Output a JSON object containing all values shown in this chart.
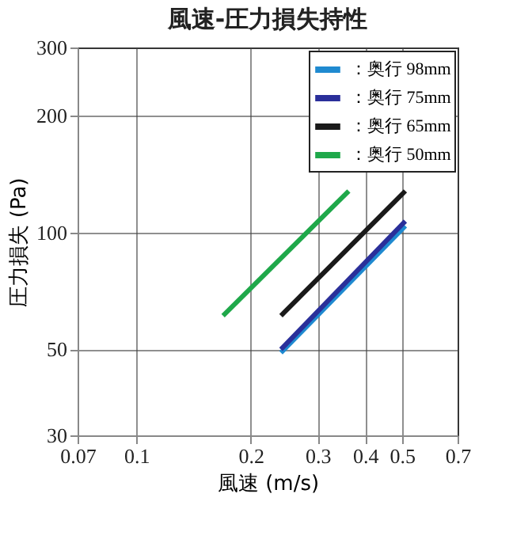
{
  "chart_data": {
    "type": "line",
    "title": "風速-圧力損失持性",
    "xlabel": "風速 (m/s)",
    "ylabel": "圧力損失 (Pa)",
    "log": "xy",
    "grid": true,
    "legend": "top right",
    "xlim": [
      0.07,
      0.7
    ],
    "ylim": [
      30,
      300
    ],
    "xticks": [
      0.07,
      0.1,
      0.2,
      0.3,
      0.4,
      0.5,
      0.7
    ],
    "yticks": [
      30,
      50,
      100,
      200,
      300
    ],
    "series": [
      {
        "name": "：奥行 98mm",
        "color": "#1f8ad0",
        "x": [
          0.24,
          0.51
        ],
        "values": [
          49,
          104
        ]
      },
      {
        "name": "：奥行 75mm",
        "color": "#2a2f9a",
        "x": [
          0.24,
          0.51
        ],
        "values": [
          50,
          107
        ]
      },
      {
        "name": "：奥行 65mm",
        "color": "#1a1a1a",
        "x": [
          0.24,
          0.51
        ],
        "values": [
          61,
          128
        ]
      },
      {
        "name": "：奥行 50mm",
        "color": "#1fa84a",
        "x": [
          0.169,
          0.362
        ],
        "values": [
          61,
          128
        ]
      }
    ]
  }
}
